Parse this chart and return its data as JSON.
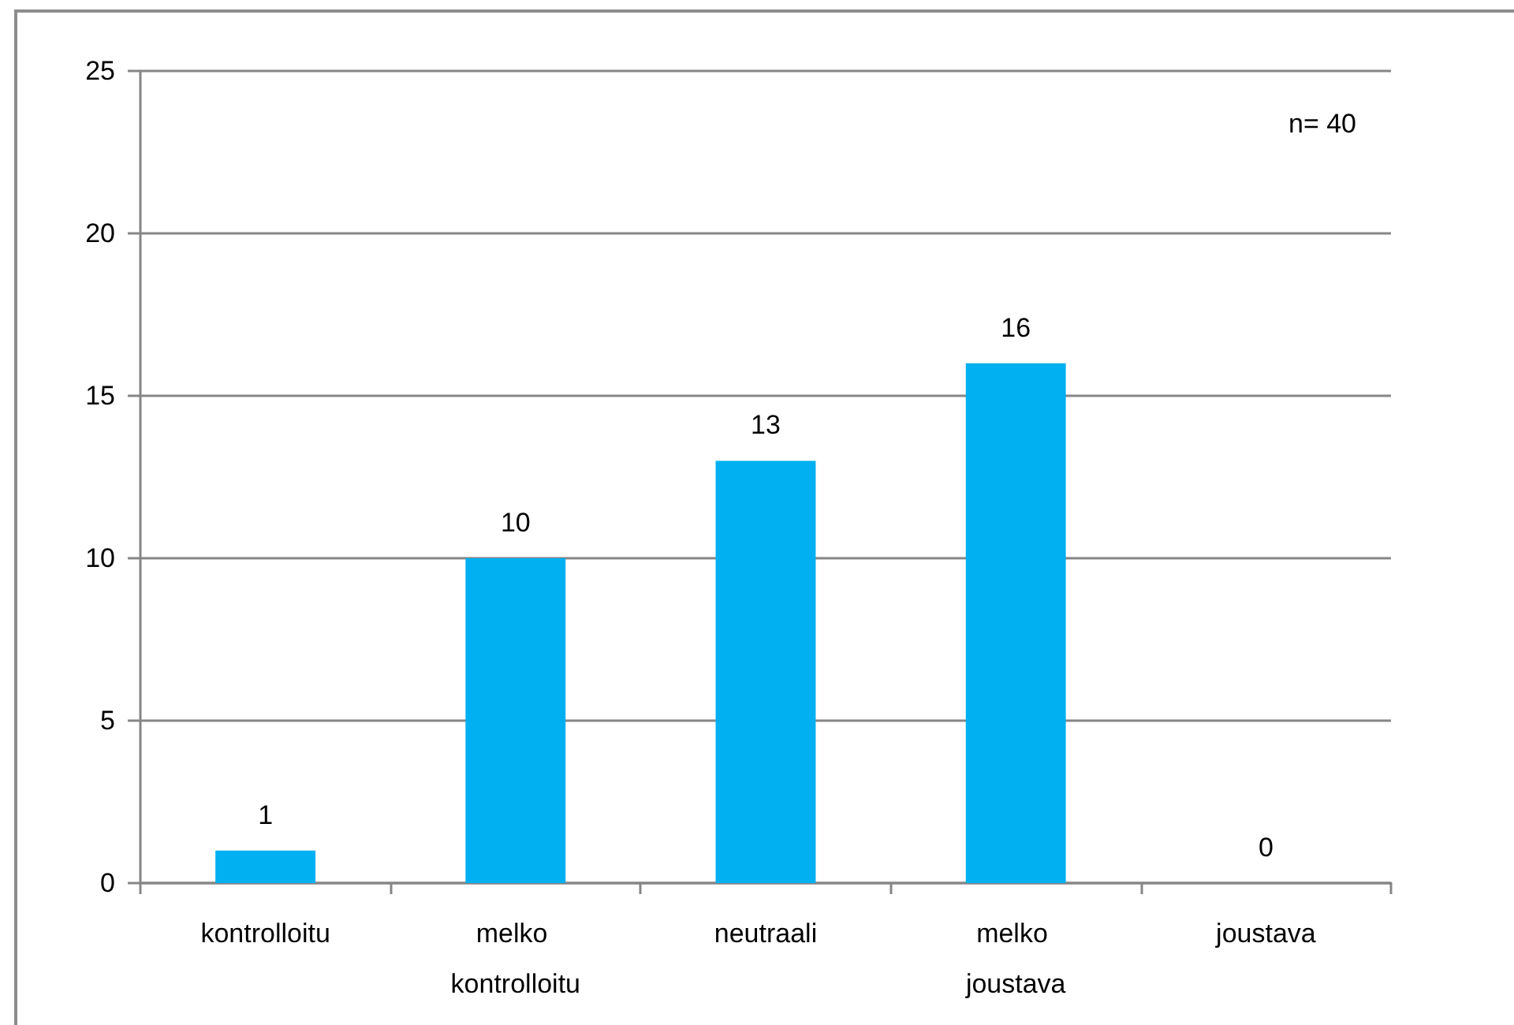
{
  "chart_data": {
    "type": "bar",
    "categories": [
      "kontrolloitu",
      "melko kontrolloitu",
      "neutraali",
      "melko joustava",
      "joustava"
    ],
    "values": [
      1,
      10,
      13,
      16,
      0
    ],
    "color": "#00b0f0",
    "ylim": [
      0,
      25
    ],
    "yticks": [
      0,
      5,
      10,
      15,
      20,
      25
    ],
    "grid": "y",
    "data_labels": true,
    "annotations": [
      "n= 40"
    ]
  }
}
